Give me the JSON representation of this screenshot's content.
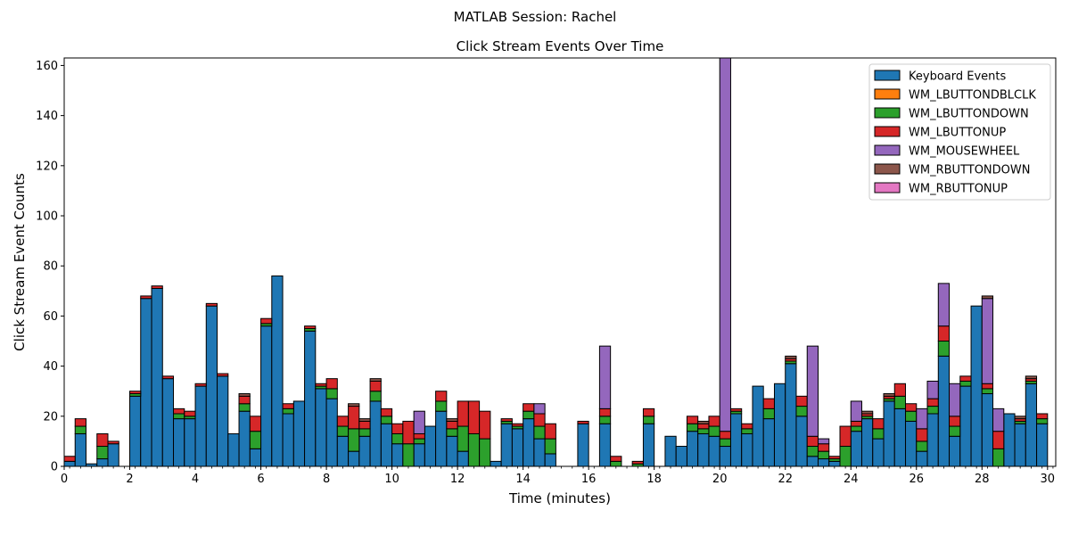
{
  "figure": {
    "suptitle": "MATLAB Session: Rachel"
  },
  "colors": {
    "keyboard": "#1f77b4",
    "WM_LBUTTONDBLCLK": "#ff7f0e",
    "WM_LBUTTONDOWN": "#2ca02c",
    "WM_LBUTTONUP": "#d62728",
    "WM_MOUSEWHEEL": "#9467bd",
    "WM_RBUTTONDOWN": "#8c564b",
    "WM_RBUTTONUP": "#e377c2",
    "edge": "#000000"
  },
  "chart_data": {
    "type": "bar",
    "stacked": true,
    "title": "Click Stream Events Over Time",
    "xlabel": "Time (minutes)",
    "ylabel": "Click Stream Event Counts",
    "xlim": [
      0,
      30.25
    ],
    "ylim": [
      0,
      163
    ],
    "bin_width": 0.333,
    "xticks": [
      0,
      2,
      4,
      6,
      8,
      10,
      12,
      14,
      16,
      18,
      20,
      22,
      24,
      26,
      28,
      30
    ],
    "yticks": [
      0,
      20,
      40,
      60,
      80,
      100,
      120,
      140,
      160
    ],
    "legend_position": "top-right",
    "grid": false,
    "bin_start": [
      0.0,
      0.333,
      0.667,
      1.0,
      1.333,
      1.667,
      2.0,
      2.333,
      2.667,
      3.0,
      3.333,
      3.667,
      4.0,
      4.333,
      4.667,
      5.0,
      5.333,
      5.667,
      6.0,
      6.333,
      6.667,
      7.0,
      7.333,
      7.667,
      8.0,
      8.333,
      8.667,
      9.0,
      9.333,
      9.667,
      10.0,
      10.333,
      10.667,
      11.0,
      11.333,
      11.667,
      12.0,
      12.333,
      12.667,
      13.0,
      13.333,
      13.667,
      14.0,
      14.333,
      14.667,
      15.0,
      15.333,
      15.667,
      16.0,
      16.333,
      16.667,
      17.0,
      17.333,
      17.667,
      18.0,
      18.333,
      18.667,
      19.0,
      19.333,
      19.667,
      20.0,
      20.333,
      20.667,
      21.0,
      21.333,
      21.667,
      22.0,
      22.333,
      22.667,
      23.0,
      23.333,
      23.667,
      24.0,
      24.333,
      24.667,
      25.0,
      25.333,
      25.667,
      26.0,
      26.333,
      26.667,
      27.0,
      27.333,
      27.667,
      28.0,
      28.333,
      28.667,
      29.0,
      29.333,
      29.667,
      30.0
    ],
    "series": [
      {
        "name": "Keyboard Events",
        "color_key": "keyboard",
        "values": [
          2,
          13,
          1,
          3,
          9,
          0,
          28,
          67,
          71,
          35,
          19,
          19,
          32,
          64,
          36,
          13,
          22,
          7,
          56,
          76,
          21,
          26,
          54,
          31,
          27,
          12,
          6,
          12,
          26,
          17,
          9,
          0,
          9,
          16,
          22,
          12,
          6,
          0,
          0,
          2,
          17,
          15,
          19,
          11,
          5,
          0,
          0,
          17,
          0,
          17,
          0,
          0,
          0,
          17,
          0,
          12,
          8,
          14,
          13,
          12,
          8,
          21,
          13,
          32,
          19,
          33,
          41,
          20,
          4,
          3,
          2,
          0,
          14,
          19,
          11,
          26,
          23,
          18,
          6,
          21,
          44,
          12,
          32,
          64,
          29,
          0,
          21,
          17,
          33,
          17,
          0
        ]
      },
      {
        "name": "WM_LBUTTONDBLCLK",
        "color_key": "WM_LBUTTONDBLCLK",
        "values": [
          0,
          0,
          0,
          0,
          0,
          0,
          0,
          0,
          0,
          0,
          0,
          0,
          0,
          0,
          0,
          0,
          0,
          0,
          0,
          0,
          0,
          0,
          0,
          0,
          0,
          0,
          0,
          0,
          0,
          0,
          0,
          0,
          0,
          0,
          0,
          0,
          0,
          0,
          0,
          0,
          0,
          0,
          0,
          0,
          0,
          0,
          0,
          0,
          0,
          0,
          0,
          0,
          0,
          0,
          0,
          0,
          0,
          0,
          0,
          0,
          0,
          0,
          0,
          0,
          0,
          0,
          0,
          0,
          0,
          0,
          0,
          0,
          0,
          0,
          0,
          0,
          0,
          0,
          0,
          0,
          0,
          0,
          0,
          0,
          0,
          0,
          0,
          0,
          0,
          0,
          0
        ]
      },
      {
        "name": "WM_LBUTTONDOWN",
        "color_key": "WM_LBUTTONDOWN",
        "values": [
          0,
          3,
          0,
          5,
          0,
          0,
          1,
          0,
          0,
          0,
          2,
          1,
          0,
          0,
          0,
          0,
          3,
          7,
          1,
          0,
          2,
          0,
          1,
          1,
          4,
          4,
          9,
          3,
          4,
          3,
          4,
          9,
          2,
          0,
          4,
          3,
          10,
          13,
          11,
          0,
          1,
          1,
          3,
          5,
          6,
          0,
          0,
          0,
          0,
          3,
          2,
          0,
          1,
          3,
          0,
          0,
          0,
          3,
          2,
          4,
          3,
          1,
          2,
          0,
          4,
          0,
          1,
          4,
          4,
          3,
          1,
          8,
          2,
          1,
          4,
          1,
          5,
          4,
          4,
          3,
          6,
          4,
          2,
          0,
          2,
          7,
          0,
          1,
          1,
          2,
          0
        ]
      },
      {
        "name": "WM_LBUTTONUP",
        "color_key": "WM_LBUTTONUP",
        "values": [
          2,
          3,
          0,
          5,
          1,
          0,
          1,
          1,
          1,
          1,
          2,
          2,
          1,
          1,
          1,
          0,
          3,
          6,
          2,
          0,
          2,
          0,
          1,
          1,
          4,
          4,
          9,
          3,
          4,
          3,
          4,
          9,
          2,
          0,
          4,
          3,
          10,
          13,
          11,
          0,
          1,
          1,
          3,
          5,
          6,
          0,
          0,
          1,
          0,
          3,
          2,
          0,
          1,
          3,
          0,
          0,
          0,
          3,
          2,
          4,
          3,
          1,
          2,
          0,
          4,
          0,
          1,
          4,
          4,
          3,
          1,
          8,
          2,
          1,
          4,
          1,
          5,
          3,
          5,
          3,
          6,
          4,
          2,
          0,
          2,
          7,
          0,
          1,
          1,
          2,
          0
        ]
      },
      {
        "name": "WM_MOUSEWHEEL",
        "color_key": "WM_MOUSEWHEEL",
        "values": [
          0,
          0,
          0,
          0,
          0,
          0,
          0,
          0,
          0,
          0,
          0,
          0,
          0,
          0,
          0,
          0,
          0,
          0,
          0,
          0,
          0,
          0,
          0,
          0,
          0,
          0,
          0,
          0,
          0,
          0,
          0,
          0,
          9,
          0,
          0,
          0,
          0,
          0,
          0,
          0,
          0,
          0,
          0,
          4,
          0,
          0,
          0,
          0,
          0,
          25,
          0,
          0,
          0,
          0,
          0,
          0,
          0,
          0,
          0,
          0,
          149,
          0,
          0,
          0,
          0,
          0,
          0,
          0,
          36,
          2,
          0,
          0,
          8,
          0,
          0,
          0,
          0,
          0,
          8,
          7,
          17,
          13,
          0,
          0,
          34,
          9,
          0,
          0,
          0,
          0,
          0
        ]
      },
      {
        "name": "WM_RBUTTONDOWN",
        "color_key": "WM_RBUTTONDOWN",
        "values": [
          0,
          0,
          0,
          0,
          0,
          0,
          0,
          0,
          0,
          0,
          0,
          0,
          0,
          0,
          0,
          0,
          1,
          0,
          0,
          0,
          0,
          0,
          0,
          0,
          0,
          0,
          1,
          1,
          1,
          0,
          0,
          0,
          0,
          0,
          0,
          1,
          0,
          0,
          0,
          0,
          0,
          0,
          0,
          0,
          0,
          0,
          0,
          0,
          0,
          0,
          0,
          0,
          0,
          0,
          0,
          0,
          0,
          0,
          1,
          0,
          0,
          0,
          0,
          0,
          0,
          0,
          1,
          0,
          0,
          0,
          0,
          0,
          0,
          1,
          0,
          1,
          0,
          0,
          0,
          0,
          0,
          0,
          0,
          0,
          1,
          0,
          0,
          1,
          1,
          0,
          0
        ]
      },
      {
        "name": "WM_RBUTTONUP",
        "color_key": "WM_RBUTTONUP",
        "values": [
          0,
          0,
          0,
          0,
          0,
          0,
          0,
          0,
          0,
          0,
          0,
          0,
          0,
          0,
          0,
          0,
          0,
          0,
          0,
          0,
          0,
          0,
          0,
          0,
          0,
          0,
          0,
          0,
          0,
          0,
          0,
          0,
          0,
          0,
          0,
          0,
          0,
          0,
          0,
          0,
          0,
          0,
          0,
          0,
          0,
          0,
          0,
          0,
          0,
          0,
          0,
          0,
          0,
          0,
          0,
          0,
          0,
          0,
          0,
          0,
          0,
          0,
          0,
          0,
          0,
          0,
          0,
          0,
          0,
          0,
          0,
          0,
          0,
          0,
          0,
          0,
          0,
          0,
          0,
          0,
          0,
          0,
          0,
          0,
          0,
          0,
          0,
          0,
          0,
          0,
          0
        ]
      }
    ]
  }
}
